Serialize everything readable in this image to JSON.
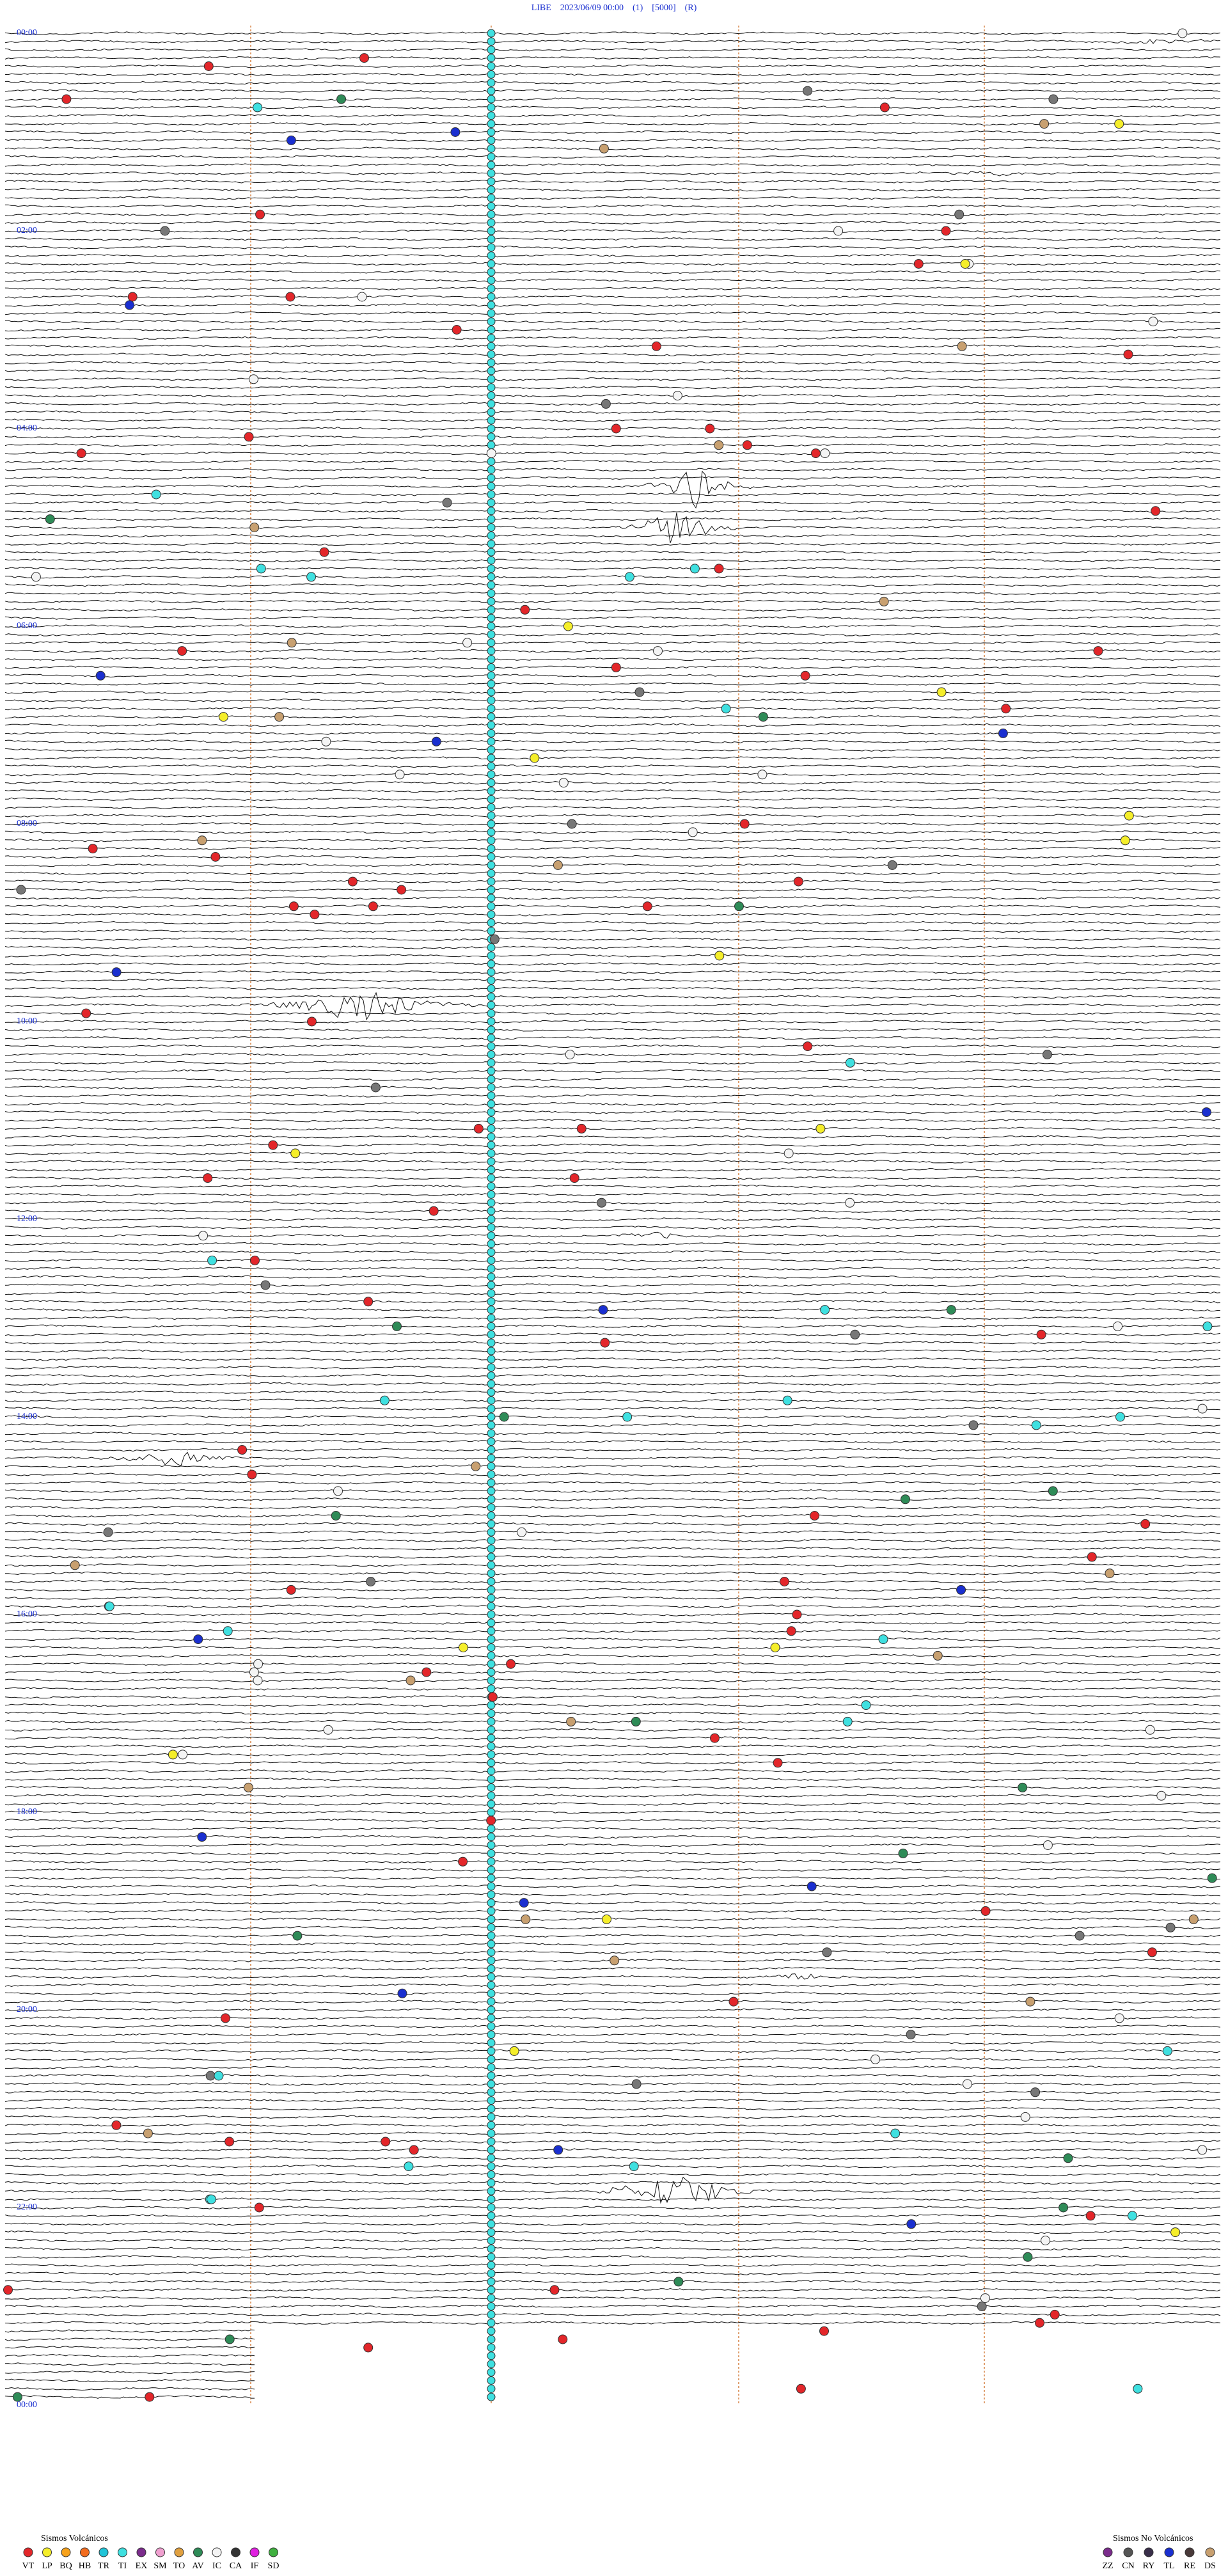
{
  "header": {
    "title": "LIBE    2023/06/09 00:00    (1)    [5000]    (R)"
  },
  "time_labels": [
    "00:00",
    "02:00",
    "04:00",
    "06:00",
    "08:00",
    "10:00",
    "12:00",
    "14:00",
    "16:00",
    "18:00",
    "20:00",
    "22:00",
    "00:00"
  ],
  "legend": {
    "volcanic": {
      "title": "Sismos Volcánicos",
      "items": [
        {
          "label": "VT",
          "color": "#e3262a"
        },
        {
          "label": "LP",
          "color": "#f5ee2a"
        },
        {
          "label": "BQ",
          "color": "#f7a21b"
        },
        {
          "label": "HB",
          "color": "#f26c1f"
        },
        {
          "label": "TR",
          "color": "#20c4d8"
        },
        {
          "label": "TI",
          "color": "#3fe0e0"
        },
        {
          "label": "EX",
          "color": "#7b2c8c"
        },
        {
          "label": "SM",
          "color": "#f0a0d0"
        },
        {
          "label": "TO",
          "color": "#e0a040"
        },
        {
          "label": "AV",
          "color": "#2e8b57"
        },
        {
          "label": "IC",
          "color": "#f4f4f4"
        },
        {
          "label": "CA",
          "color": "#333333"
        },
        {
          "label": "IF",
          "color": "#e020e0"
        },
        {
          "label": "SD",
          "color": "#40b040"
        }
      ]
    },
    "non_volcanic": {
      "title": "Sismos No Volcánicos",
      "items": [
        {
          "label": "ZZ",
          "color": "#7b2c8c"
        },
        {
          "label": "CN",
          "color": "#555555"
        },
        {
          "label": "RY",
          "color": "#3a2f4a"
        },
        {
          "label": "TL",
          "color": "#1a2fd0"
        },
        {
          "label": "RE",
          "color": "#4a3a3a"
        },
        {
          "label": "DS",
          "color": "#c8a070"
        }
      ]
    }
  }
}
